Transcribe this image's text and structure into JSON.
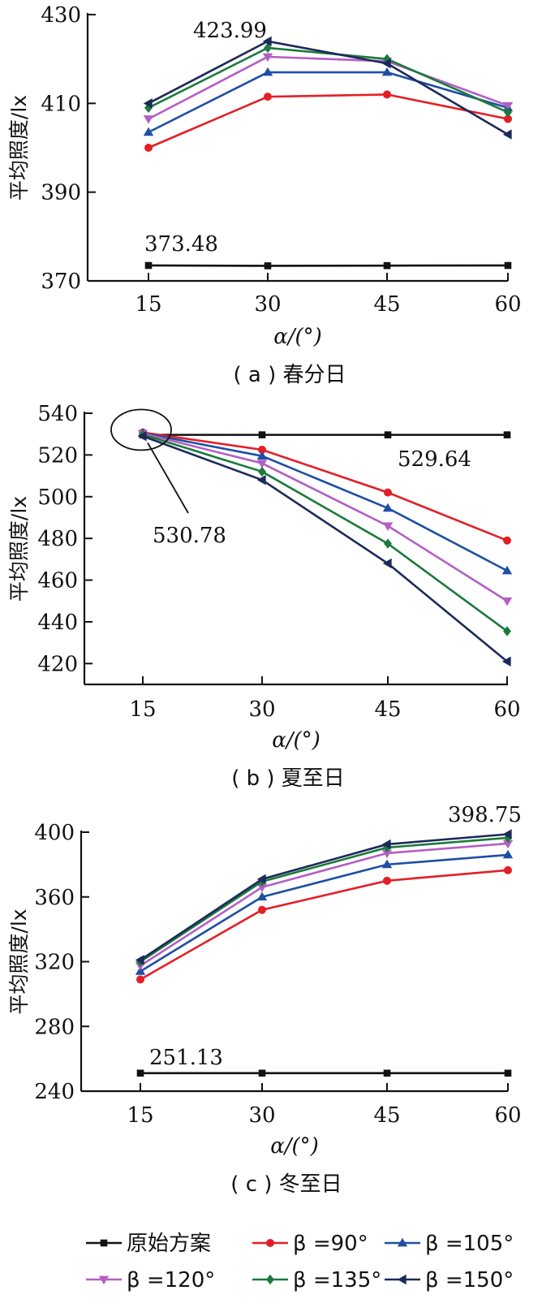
{
  "colors": {
    "axis": "#111111",
    "original": "#111111",
    "b90": "#e31f26",
    "b105": "#1f4fa3",
    "b120": "#b35fc4",
    "b135": "#1b7a3c",
    "b150": "#1c2a5a"
  },
  "legend": [
    {
      "key": "original",
      "label": "原始方案",
      "marker": "square"
    },
    {
      "key": "b90",
      "label": "β =90°",
      "marker": "circle"
    },
    {
      "key": "b105",
      "label": "β =105°",
      "marker": "triangle-up"
    },
    {
      "key": "b120",
      "label": "β =120°",
      "marker": "triangle-down"
    },
    {
      "key": "b135",
      "label": "β =135°",
      "marker": "diamond"
    },
    {
      "key": "b150",
      "label": "β =150°",
      "marker": "triangle-left"
    }
  ],
  "chart_data": [
    {
      "type": "line",
      "caption": "( a ) 春分日",
      "xlabel": "α/(°)",
      "ylabel": "平均照度/lx",
      "x": [
        15,
        30,
        45,
        60
      ],
      "ylim": [
        370,
        430
      ],
      "yticks": [
        370,
        390,
        410,
        430
      ],
      "legend_position": "bottom",
      "series": [
        {
          "key": "original",
          "name": "原始方案",
          "values": [
            373.48,
            373.4,
            373.45,
            373.48
          ]
        },
        {
          "key": "b90",
          "name": "β =90°",
          "values": [
            400.0,
            411.5,
            412.0,
            406.5
          ]
        },
        {
          "key": "b105",
          "name": "β =105°",
          "values": [
            403.5,
            417.0,
            417.0,
            409.0
          ]
        },
        {
          "key": "b120",
          "name": "β =120°",
          "values": [
            406.5,
            420.5,
            419.5,
            409.5
          ]
        },
        {
          "key": "b135",
          "name": "β =135°",
          "values": [
            409.0,
            422.5,
            420.0,
            408.0
          ]
        },
        {
          "key": "b150",
          "name": "β =150°",
          "values": [
            410.0,
            423.99,
            419.0,
            403.0
          ]
        }
      ],
      "annotations": [
        {
          "text": "423.99",
          "x": 30,
          "y": 423.99
        },
        {
          "text": "373.48",
          "x": 15,
          "y": 373.48
        }
      ]
    },
    {
      "type": "line",
      "caption": "( b ) 夏至日",
      "xlabel": "α/(°)",
      "ylabel": "平均照度/lx",
      "x": [
        15,
        30,
        45,
        60
      ],
      "ylim": [
        410,
        540
      ],
      "yticks": [
        420,
        440,
        460,
        480,
        500,
        520,
        540
      ],
      "legend_position": "bottom",
      "series": [
        {
          "key": "original",
          "name": "原始方案",
          "values": [
            529.64,
            529.64,
            529.64,
            529.64
          ]
        },
        {
          "key": "b90",
          "name": "β =90°",
          "values": [
            530.78,
            522.5,
            502.0,
            479.0
          ]
        },
        {
          "key": "b105",
          "name": "β =105°",
          "values": [
            530.5,
            519.5,
            494.5,
            464.5
          ]
        },
        {
          "key": "b120",
          "name": "β =120°",
          "values": [
            530.3,
            516.0,
            486.0,
            450.0
          ]
        },
        {
          "key": "b135",
          "name": "β =135°",
          "values": [
            529.8,
            512.0,
            477.5,
            435.5
          ]
        },
        {
          "key": "b150",
          "name": "β =150°",
          "values": [
            529.0,
            508.0,
            468.0,
            421.0
          ]
        }
      ],
      "annotations": [
        {
          "text": "529.64",
          "x": 45,
          "y": 529.64
        },
        {
          "text": "530.78",
          "x": 15,
          "y": 530.78
        }
      ]
    },
    {
      "type": "line",
      "caption": "( c ) 冬至日",
      "xlabel": "α/(°)",
      "ylabel": "平均照度/lx",
      "x": [
        15,
        30,
        45,
        60
      ],
      "ylim": [
        240,
        400
      ],
      "yticks": [
        240,
        280,
        320,
        360,
        400
      ],
      "legend_position": "bottom",
      "series": [
        {
          "key": "original",
          "name": "原始方案",
          "values": [
            251.13,
            251.13,
            251.13,
            251.13
          ]
        },
        {
          "key": "b90",
          "name": "β =90°",
          "values": [
            309.0,
            352.0,
            370.0,
            376.5
          ]
        },
        {
          "key": "b105",
          "name": "β =105°",
          "values": [
            314.0,
            360.0,
            380.0,
            386.0
          ]
        },
        {
          "key": "b120",
          "name": "β =120°",
          "values": [
            317.5,
            366.0,
            387.0,
            393.0
          ]
        },
        {
          "key": "b135",
          "name": "β =135°",
          "values": [
            320.0,
            369.5,
            390.5,
            396.5
          ]
        },
        {
          "key": "b150",
          "name": "β =150°",
          "values": [
            321.0,
            371.0,
            392.5,
            398.75
          ]
        }
      ],
      "annotations": [
        {
          "text": "398.75",
          "x": 60,
          "y": 398.75
        },
        {
          "text": "251.13",
          "x": 15,
          "y": 251.13
        }
      ]
    }
  ]
}
